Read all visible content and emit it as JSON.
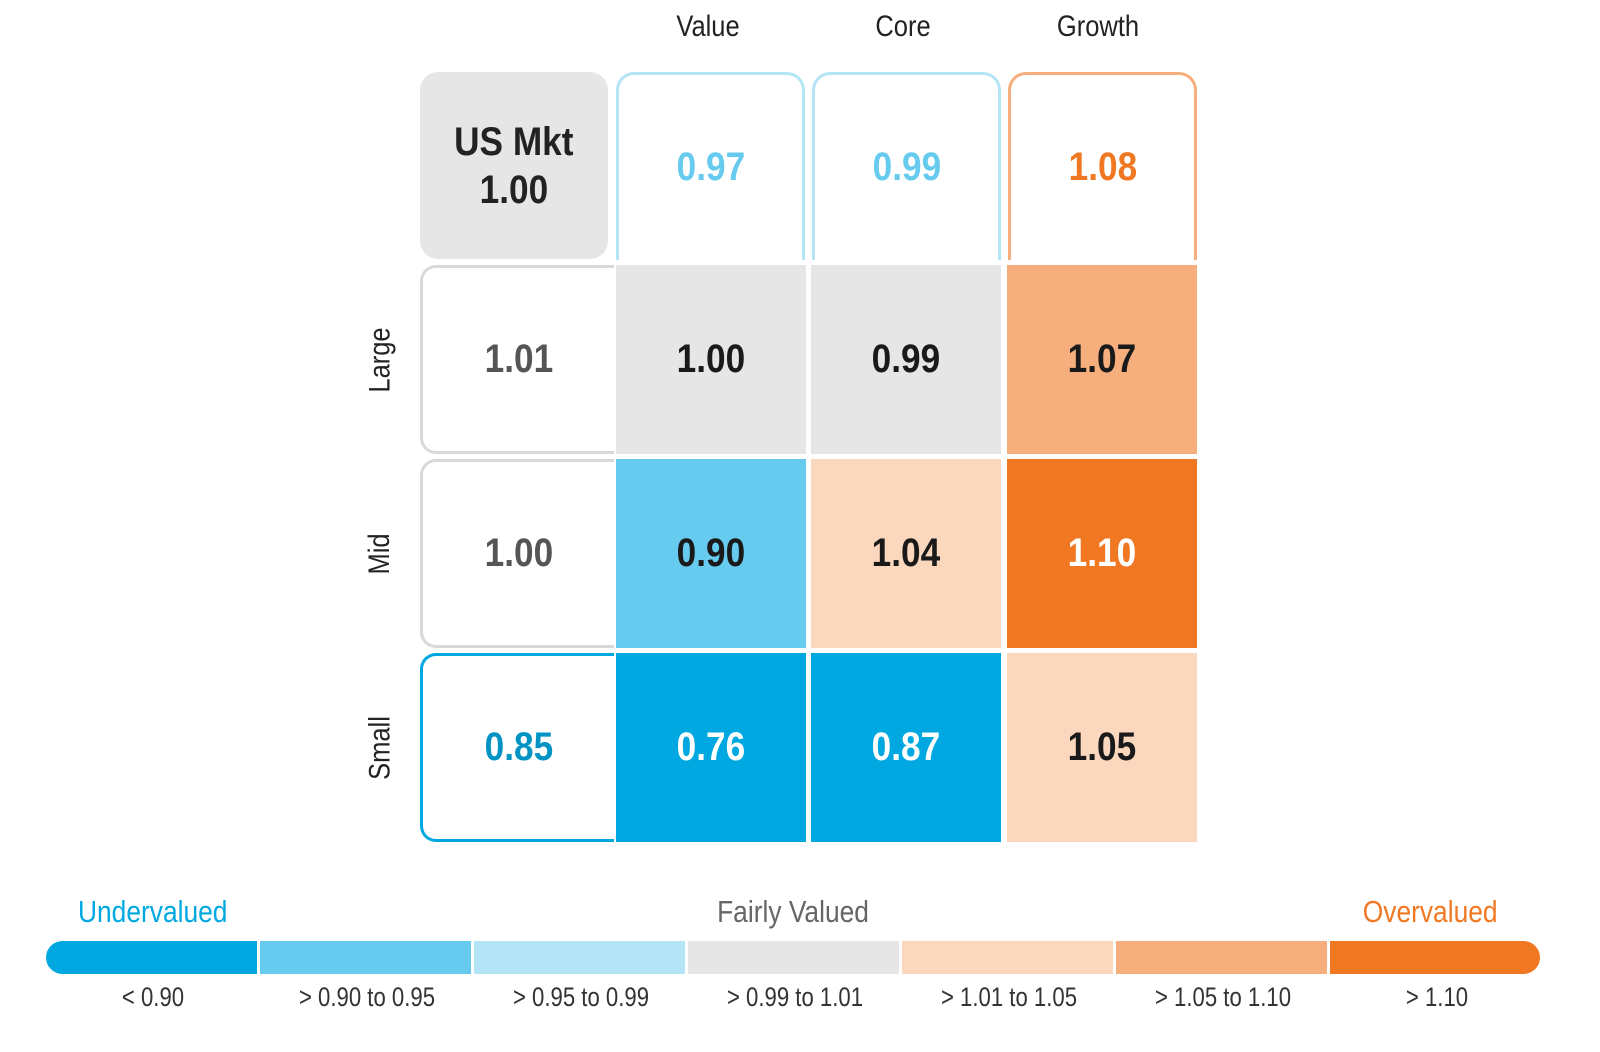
{
  "chart_data": {
    "type": "heatmap",
    "columns": [
      "Value",
      "Core",
      "Growth"
    ],
    "rows": [
      "Large",
      "Mid",
      "Small"
    ],
    "us_market": {
      "label": "US Mkt",
      "value": "1.00"
    },
    "style_totals": [
      "0.97",
      "0.99",
      "1.08"
    ],
    "size_totals": [
      "1.01",
      "1.00",
      "0.85"
    ],
    "values": [
      [
        "1.00",
        "0.99",
        "1.07"
      ],
      [
        "0.90",
        "1.04",
        "1.10"
      ],
      [
        "0.76",
        "0.87",
        "1.05"
      ]
    ],
    "legend": {
      "undervalued": "Undervalued",
      "fairly_valued": "Fairly Valued",
      "overvalued": "Overvalued",
      "bins": [
        "< 0.90",
        "> 0.90 to 0.95",
        "> 0.95 to 0.99",
        "> 0.99 to 1.01",
        "> 1.01 to 1.05",
        "> 1.05 to 1.10",
        "> 1.10"
      ],
      "colors": [
        "#00a8e1",
        "#66cbee",
        "#b3e5f6",
        "#e6e6e6",
        "#fad7bd",
        "#f5ae7c",
        "#f07823"
      ]
    }
  }
}
